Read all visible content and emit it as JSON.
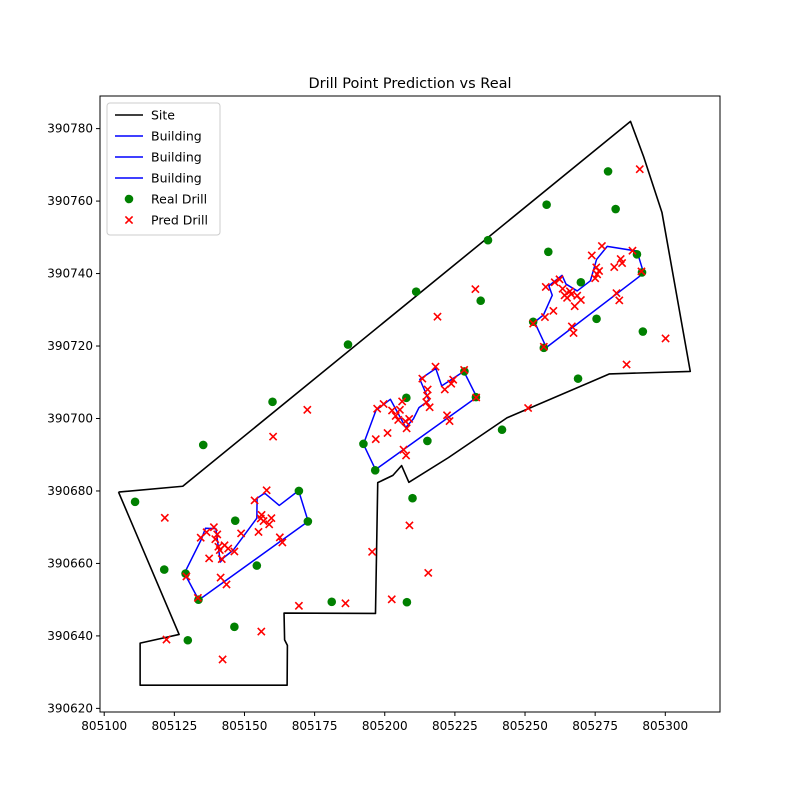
{
  "chart_data": {
    "type": "scatter",
    "title": "Drill Point Prediction vs Real",
    "xlabel": "",
    "ylabel": "",
    "xlim": [
      805098.5,
      805319.5
    ],
    "ylim": [
      390619,
      390789
    ],
    "xticks": [
      805100,
      805125,
      805150,
      805175,
      805200,
      805225,
      805250,
      805275,
      805300
    ],
    "yticks": [
      390620,
      390640,
      390660,
      390680,
      390700,
      390720,
      390740,
      390760,
      390780
    ],
    "grid": false,
    "legend": {
      "placement": "upper-left",
      "entries": [
        {
          "label": "Site",
          "kind": "line",
          "color": "#000000"
        },
        {
          "label": "Building",
          "kind": "line",
          "color": "#0000ff"
        },
        {
          "label": "Building",
          "kind": "line",
          "color": "#0000ff"
        },
        {
          "label": "Building",
          "kind": "line",
          "color": "#0000ff"
        },
        {
          "label": "Real Drill",
          "kind": "circle",
          "color": "#008000"
        },
        {
          "label": "Pred Drill",
          "kind": "x",
          "color": "#ff0000"
        }
      ]
    },
    "site": {
      "name": "Site",
      "color": "#000000",
      "points": [
        [
          805105.1,
          390679.7
        ],
        [
          805128.0,
          390681.3
        ],
        [
          805287.6,
          390782.0
        ],
        [
          805292.3,
          390772.2
        ],
        [
          805298.8,
          390756.9
        ],
        [
          805308.9,
          390713.0
        ],
        [
          805280.1,
          390712.3
        ],
        [
          805243.6,
          390700.2
        ],
        [
          805222.7,
          390689.2
        ],
        [
          805208.6,
          390682.4
        ],
        [
          805206.0,
          390687.0
        ],
        [
          805202.9,
          390684.3
        ],
        [
          805197.5,
          390682.3
        ],
        [
          805196.7,
          390646.2
        ],
        [
          805164.1,
          390646.3
        ],
        [
          805164.3,
          390638.9
        ],
        [
          805165.3,
          390637.4
        ],
        [
          805165.2,
          390626.4
        ],
        [
          805112.8,
          390626.4
        ],
        [
          805112.8,
          390638.0
        ],
        [
          805126.7,
          390640.4
        ],
        [
          805105.1,
          390679.7
        ]
      ]
    },
    "buildings": [
      {
        "name": "Building",
        "color": "#0000ff",
        "points": [
          [
            805128.6,
            390657.3
          ],
          [
            805133.7,
            390649.9
          ],
          [
            805172.7,
            390671.6
          ],
          [
            805169.3,
            390680.1
          ],
          [
            805162.4,
            390676.0
          ],
          [
            805157.2,
            390679.4
          ],
          [
            805154.5,
            390678.0
          ],
          [
            805154.4,
            390672.5
          ],
          [
            805145.9,
            390663.6
          ],
          [
            805142.6,
            390661.6
          ],
          [
            805141.4,
            390660.4
          ],
          [
            805139.8,
            390669.6
          ],
          [
            805136.1,
            390669.7
          ],
          [
            805134.6,
            390666.6
          ],
          [
            805128.6,
            390657.3
          ]
        ]
      },
      {
        "name": "Building",
        "color": "#0000ff",
        "points": [
          [
            805192.4,
            390692.9
          ],
          [
            805196.7,
            390685.9
          ],
          [
            805232.8,
            390705.9
          ],
          [
            805228.2,
            390713.0
          ],
          [
            805220.3,
            390709.0
          ],
          [
            805218.2,
            390713.8
          ],
          [
            805212.5,
            390710.8
          ],
          [
            805215.8,
            390705.0
          ],
          [
            805212.2,
            390703.0
          ],
          [
            805210.2,
            390699.9
          ],
          [
            805207.5,
            390697.5
          ],
          [
            805202.0,
            390705.3
          ],
          [
            805196.9,
            390702.3
          ],
          [
            805192.4,
            390692.9
          ]
        ]
      },
      {
        "name": "Building",
        "color": "#0000ff",
        "points": [
          [
            805253.4,
            390726.6
          ],
          [
            805257.6,
            390719.6
          ],
          [
            805292.3,
            390740.1
          ],
          [
            805289.9,
            390746.2
          ],
          [
            805279.3,
            390747.5
          ],
          [
            805275.5,
            390743.9
          ],
          [
            805273.3,
            390738.0
          ],
          [
            805268.6,
            390735.2
          ],
          [
            805264.6,
            390737.1
          ],
          [
            805263.2,
            390739.5
          ],
          [
            805258.5,
            390736.6
          ],
          [
            805259.7,
            390734.0
          ],
          [
            805256.6,
            390728.6
          ],
          [
            805253.4,
            390726.6
          ]
        ]
      }
    ],
    "real_drill": {
      "name": "Real Drill",
      "color": "#008000",
      "points": [
        [
          805111.0,
          390677.0
        ],
        [
          805121.4,
          390658.3
        ],
        [
          805129.0,
          390657.2
        ],
        [
          805129.8,
          390638.8
        ],
        [
          805133.6,
          390650.0
        ],
        [
          805135.3,
          390692.7
        ],
        [
          805146.4,
          390642.5
        ],
        [
          805146.7,
          390671.8
        ],
        [
          805154.4,
          390659.4
        ],
        [
          805160.0,
          390704.6
        ],
        [
          805169.4,
          390680.0
        ],
        [
          805172.6,
          390671.6
        ],
        [
          805181.1,
          390649.4
        ],
        [
          805186.9,
          390720.4
        ],
        [
          805192.4,
          390693.0
        ],
        [
          805196.6,
          390685.7
        ],
        [
          805207.7,
          390705.7
        ],
        [
          805207.9,
          390649.3
        ],
        [
          805209.9,
          390678.0
        ],
        [
          805211.2,
          390735.0
        ],
        [
          805215.2,
          390693.8
        ],
        [
          805228.4,
          390713.0
        ],
        [
          805232.5,
          390705.9
        ],
        [
          805234.2,
          390732.5
        ],
        [
          805236.8,
          390749.2
        ],
        [
          805241.8,
          390696.9
        ],
        [
          805252.9,
          390726.7
        ],
        [
          805256.7,
          390719.5
        ],
        [
          805257.7,
          390759.0
        ],
        [
          805258.3,
          390746.0
        ],
        [
          805268.9,
          390711.0
        ],
        [
          805269.9,
          390737.6
        ],
        [
          805275.5,
          390727.5
        ],
        [
          805279.6,
          390768.2
        ],
        [
          805282.3,
          390757.8
        ],
        [
          805289.9,
          390745.3
        ],
        [
          805291.7,
          390740.3
        ],
        [
          805292.0,
          390724.0
        ]
      ]
    },
    "pred_drill": {
      "name": "Pred Drill",
      "color": "#ff0000",
      "points": [
        [
          805121.6,
          390672.6
        ],
        [
          805122.2,
          390639.0
        ],
        [
          805129.3,
          390656.4
        ],
        [
          805133.4,
          390650.5
        ],
        [
          805134.4,
          390667.1
        ],
        [
          805136.5,
          390668.6
        ],
        [
          805137.4,
          390661.4
        ],
        [
          805139.1,
          390670.0
        ],
        [
          805139.6,
          390666.7
        ],
        [
          805140.3,
          390668.0
        ],
        [
          805140.7,
          390664.6
        ],
        [
          805141.2,
          390663.7
        ],
        [
          805141.9,
          390661.2
        ],
        [
          805141.5,
          390656.1
        ],
        [
          805142.2,
          390633.5
        ],
        [
          805142.9,
          390665.0
        ],
        [
          805143.6,
          390654.2
        ],
        [
          805144.2,
          390664.1
        ],
        [
          805146.4,
          390663.3
        ],
        [
          805148.8,
          390668.3
        ],
        [
          805153.6,
          390677.4
        ],
        [
          805155.0,
          390668.7
        ],
        [
          805155.8,
          390672.4
        ],
        [
          805156.1,
          390673.4
        ],
        [
          805156.0,
          390641.2
        ],
        [
          805156.8,
          390671.7
        ],
        [
          805157.9,
          390680.2
        ],
        [
          805158.8,
          390670.8
        ],
        [
          805159.6,
          390672.5
        ],
        [
          805160.2,
          390695.0
        ],
        [
          805162.6,
          390667.2
        ],
        [
          805163.5,
          390665.8
        ],
        [
          805169.4,
          390648.3
        ],
        [
          805172.4,
          390702.4
        ],
        [
          805186.0,
          390649.0
        ],
        [
          805195.5,
          390663.2
        ],
        [
          805196.8,
          390694.3
        ],
        [
          805197.3,
          390702.7
        ],
        [
          805199.6,
          390704.0
        ],
        [
          805201.0,
          390696.0
        ],
        [
          805202.6,
          390702.2
        ],
        [
          805202.5,
          390650.1
        ],
        [
          805203.9,
          390700.7
        ],
        [
          805204.8,
          390699.6
        ],
        [
          805205.4,
          390702.4
        ],
        [
          805206.2,
          390704.7
        ],
        [
          805206.7,
          390691.4
        ],
        [
          805207.4,
          390699.2
        ],
        [
          805207.6,
          390689.8
        ],
        [
          805207.8,
          390697.3
        ],
        [
          805208.7,
          390699.9
        ],
        [
          805208.8,
          390670.5
        ],
        [
          805213.4,
          390711.0
        ],
        [
          805214.8,
          390704.5
        ],
        [
          805215.1,
          390706.3
        ],
        [
          805215.3,
          390708.0
        ],
        [
          805215.5,
          390657.4
        ],
        [
          805216.0,
          390703.1
        ],
        [
          805218.1,
          390714.3
        ],
        [
          805218.8,
          390728.1
        ],
        [
          805221.4,
          390708.0
        ],
        [
          805222.2,
          390700.9
        ],
        [
          805223.1,
          390699.3
        ],
        [
          805223.7,
          390709.6
        ],
        [
          805224.4,
          390710.7
        ],
        [
          805228.3,
          390713.4
        ],
        [
          805232.3,
          390735.7
        ],
        [
          805232.6,
          390705.8
        ],
        [
          805251.1,
          390702.9
        ],
        [
          805252.9,
          390726.2
        ],
        [
          805256.7,
          390719.8
        ],
        [
          805257.1,
          390728.0
        ],
        [
          805257.4,
          390736.3
        ],
        [
          805260.1,
          390729.7
        ],
        [
          805260.6,
          390737.6
        ],
        [
          805262.3,
          390738.4
        ],
        [
          805263.4,
          390735.8
        ],
        [
          805264.1,
          390734.0
        ],
        [
          805265.0,
          390733.3
        ],
        [
          805266.0,
          390735.1
        ],
        [
          805266.5,
          390734.3
        ],
        [
          805266.7,
          390725.4
        ],
        [
          805267.3,
          390723.6
        ],
        [
          805267.7,
          390731.0
        ],
        [
          805268.6,
          390733.9
        ],
        [
          805269.9,
          390732.7
        ],
        [
          805273.8,
          390745.0
        ],
        [
          805275.0,
          390738.7
        ],
        [
          805275.4,
          390741.7
        ],
        [
          805275.7,
          390739.8
        ],
        [
          805276.4,
          390740.7
        ],
        [
          805277.4,
          390747.6
        ],
        [
          805281.8,
          390741.8
        ],
        [
          805282.6,
          390734.6
        ],
        [
          805283.6,
          390732.6
        ],
        [
          805284.1,
          390744.0
        ],
        [
          805284.6,
          390742.9
        ],
        [
          805286.2,
          390714.9
        ],
        [
          805288.3,
          390746.3
        ],
        [
          805290.9,
          390768.8
        ],
        [
          805291.5,
          390740.6
        ],
        [
          805300.1,
          390722.1
        ]
      ]
    }
  }
}
